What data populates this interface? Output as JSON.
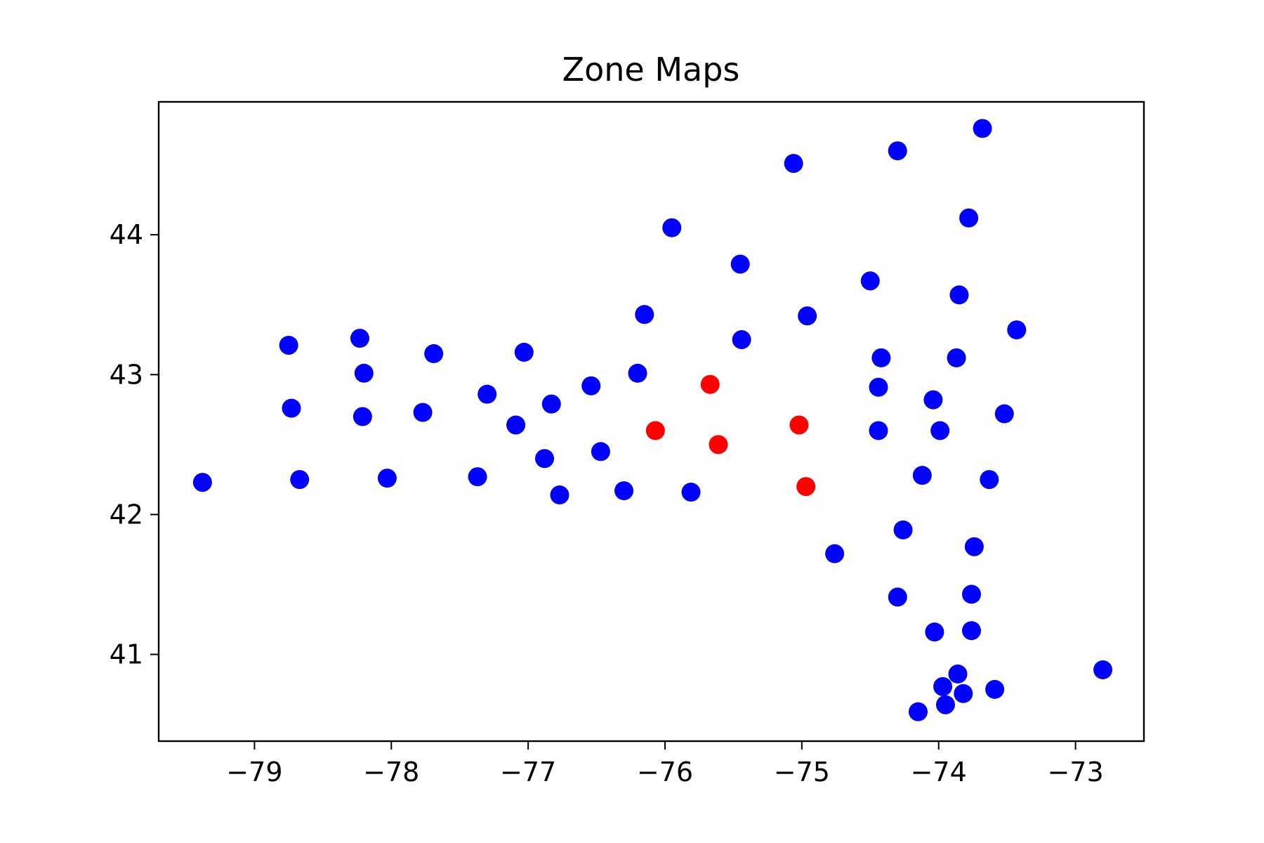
{
  "chart_data": {
    "type": "scatter",
    "title": "Zone Maps",
    "xlabel": "",
    "ylabel": "",
    "xlim": [
      -79.7,
      -72.5
    ],
    "ylim": [
      40.38,
      44.95
    ],
    "xticks": [
      -79,
      -78,
      -77,
      -76,
      -75,
      -74,
      -73
    ],
    "xtick_labels": [
      "−79",
      "−78",
      "−77",
      "−76",
      "−75",
      "−74",
      "−73"
    ],
    "yticks": [
      41,
      42,
      43,
      44
    ],
    "ytick_labels": [
      "41",
      "42",
      "43",
      "44"
    ],
    "grid": false,
    "legend": "none",
    "series": [
      {
        "color": "#0000ff",
        "points": [
          [
            -79.38,
            42.23
          ],
          [
            -78.75,
            43.21
          ],
          [
            -78.73,
            42.76
          ],
          [
            -78.67,
            42.25
          ],
          [
            -78.23,
            43.26
          ],
          [
            -78.2,
            43.01
          ],
          [
            -78.21,
            42.7
          ],
          [
            -78.03,
            42.26
          ],
          [
            -77.77,
            42.73
          ],
          [
            -77.69,
            43.15
          ],
          [
            -77.37,
            42.27
          ],
          [
            -77.3,
            42.86
          ],
          [
            -77.09,
            42.64
          ],
          [
            -77.03,
            43.16
          ],
          [
            -76.88,
            42.4
          ],
          [
            -76.83,
            42.79
          ],
          [
            -76.77,
            42.14
          ],
          [
            -76.54,
            42.92
          ],
          [
            -76.47,
            42.45
          ],
          [
            -76.3,
            42.17
          ],
          [
            -76.2,
            43.01
          ],
          [
            -76.15,
            43.43
          ],
          [
            -75.95,
            44.05
          ],
          [
            -75.81,
            42.16
          ],
          [
            -75.45,
            43.79
          ],
          [
            -75.44,
            43.25
          ],
          [
            -75.06,
            44.51
          ],
          [
            -74.96,
            43.42
          ],
          [
            -74.76,
            41.72
          ],
          [
            -74.5,
            43.67
          ],
          [
            -74.44,
            42.91
          ],
          [
            -74.44,
            42.6
          ],
          [
            -74.42,
            43.12
          ],
          [
            -74.3,
            44.6
          ],
          [
            -74.3,
            41.41
          ],
          [
            -74.26,
            41.89
          ],
          [
            -74.15,
            40.59
          ],
          [
            -74.12,
            42.28
          ],
          [
            -74.04,
            42.82
          ],
          [
            -74.03,
            41.16
          ],
          [
            -73.99,
            42.6
          ],
          [
            -73.97,
            40.77
          ],
          [
            -73.95,
            40.64
          ],
          [
            -73.87,
            43.12
          ],
          [
            -73.86,
            40.86
          ],
          [
            -73.85,
            43.57
          ],
          [
            -73.82,
            40.72
          ],
          [
            -73.78,
            44.12
          ],
          [
            -73.76,
            41.43
          ],
          [
            -73.76,
            41.17
          ],
          [
            -73.74,
            41.77
          ],
          [
            -73.68,
            44.76
          ],
          [
            -73.63,
            42.25
          ],
          [
            -73.59,
            40.75
          ],
          [
            -73.52,
            42.72
          ],
          [
            -73.43,
            43.32
          ],
          [
            -72.8,
            40.89
          ]
        ]
      },
      {
        "color": "#ff0000",
        "points": [
          [
            -76.07,
            42.6
          ],
          [
            -75.67,
            42.93
          ],
          [
            -75.61,
            42.5
          ],
          [
            -75.02,
            42.64
          ],
          [
            -74.97,
            42.2
          ]
        ]
      }
    ]
  }
}
